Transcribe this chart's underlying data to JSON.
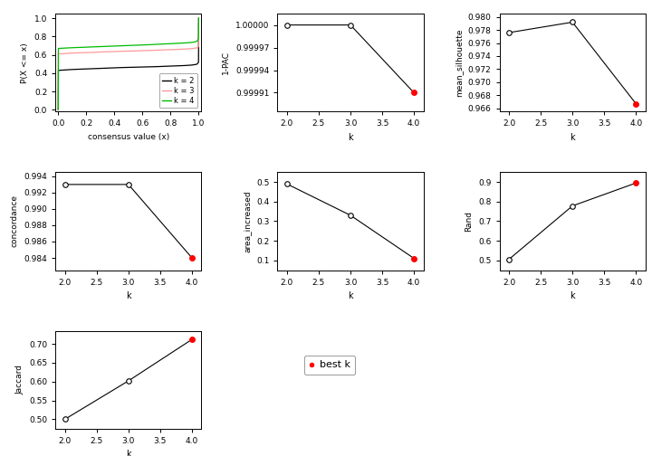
{
  "ecdf": {
    "k2": {
      "x": [
        0.0,
        0.001,
        0.05,
        0.1,
        0.15,
        0.2,
        0.25,
        0.3,
        0.35,
        0.4,
        0.45,
        0.5,
        0.55,
        0.6,
        0.65,
        0.7,
        0.75,
        0.8,
        0.85,
        0.9,
        0.95,
        0.98,
        0.99,
        0.999,
        1.0
      ],
      "y": [
        0.0,
        0.43,
        0.435,
        0.44,
        0.443,
        0.446,
        0.449,
        0.452,
        0.455,
        0.458,
        0.461,
        0.463,
        0.465,
        0.467,
        0.469,
        0.471,
        0.474,
        0.477,
        0.48,
        0.483,
        0.488,
        0.495,
        0.5,
        0.52,
        1.0
      ],
      "color": "#000000"
    },
    "k3": {
      "x": [
        0.0,
        0.001,
        0.05,
        0.1,
        0.15,
        0.2,
        0.25,
        0.3,
        0.35,
        0.4,
        0.45,
        0.5,
        0.55,
        0.6,
        0.65,
        0.7,
        0.75,
        0.8,
        0.85,
        0.9,
        0.95,
        0.98,
        0.99,
        0.999,
        1.0
      ],
      "y": [
        0.0,
        0.61,
        0.615,
        0.62,
        0.622,
        0.625,
        0.628,
        0.631,
        0.634,
        0.636,
        0.639,
        0.641,
        0.643,
        0.646,
        0.648,
        0.651,
        0.654,
        0.657,
        0.66,
        0.663,
        0.668,
        0.674,
        0.678,
        0.69,
        1.0
      ],
      "color": "#FF9999"
    },
    "k4": {
      "x": [
        0.0,
        0.001,
        0.05,
        0.1,
        0.15,
        0.2,
        0.25,
        0.3,
        0.35,
        0.4,
        0.45,
        0.5,
        0.55,
        0.6,
        0.65,
        0.7,
        0.75,
        0.8,
        0.85,
        0.9,
        0.95,
        0.975,
        0.985,
        0.99,
        0.999,
        1.0
      ],
      "y": [
        0.0,
        0.67,
        0.674,
        0.678,
        0.681,
        0.684,
        0.687,
        0.69,
        0.693,
        0.696,
        0.699,
        0.702,
        0.705,
        0.708,
        0.711,
        0.715,
        0.719,
        0.722,
        0.726,
        0.73,
        0.736,
        0.742,
        0.748,
        0.752,
        0.78,
        1.0
      ],
      "color": "#00BB00"
    }
  },
  "pac": {
    "k": [
      2,
      3,
      4
    ],
    "values": [
      1.0,
      1.0,
      0.99991
    ],
    "best_k": 4,
    "ylim_lo": 0.999885,
    "ylim_hi": 1.000015,
    "yticks": [
      0.99991,
      0.99994,
      0.99997,
      1.0
    ],
    "yticklabels": [
      "0.99991",
      "0.99994",
      "0.99997",
      "1.00000"
    ]
  },
  "mean_silhouette": {
    "k": [
      2,
      3,
      4
    ],
    "values": [
      0.9776,
      0.9792,
      0.9667
    ],
    "best_k": 4,
    "ylim_lo": 0.9655,
    "ylim_hi": 0.9805,
    "yticks": [
      0.966,
      0.968,
      0.97,
      0.972,
      0.974,
      0.976,
      0.978,
      0.98
    ],
    "yticklabels": [
      "0.966",
      "0.968",
      "0.970",
      "0.972",
      "0.974",
      "0.976",
      "0.978",
      "0.980"
    ]
  },
  "concordance": {
    "k": [
      2,
      3,
      4
    ],
    "values": [
      0.993,
      0.993,
      0.984
    ],
    "best_k": 4,
    "ylim_lo": 0.9825,
    "ylim_hi": 0.9945,
    "yticks": [
      0.984,
      0.986,
      0.988,
      0.99,
      0.992,
      0.994
    ],
    "yticklabels": [
      "0.984",
      "0.986",
      "0.988",
      "0.990",
      "0.992",
      "0.994"
    ]
  },
  "area_increased": {
    "k": [
      2,
      3,
      4
    ],
    "values": [
      0.49,
      0.33,
      0.11
    ],
    "best_k": 4,
    "ylim_lo": 0.05,
    "ylim_hi": 0.55,
    "yticks": [
      0.1,
      0.2,
      0.3,
      0.4,
      0.5
    ],
    "yticklabels": [
      "0.1",
      "0.2",
      "0.3",
      "0.4",
      "0.5"
    ]
  },
  "rand": {
    "k": [
      2,
      3,
      4
    ],
    "values": [
      0.505,
      0.778,
      0.895
    ],
    "best_k": 4,
    "ylim_lo": 0.45,
    "ylim_hi": 0.95,
    "yticks": [
      0.5,
      0.6,
      0.7,
      0.8,
      0.9
    ],
    "yticklabels": [
      "0.5",
      "0.6",
      "0.7",
      "0.8",
      "0.9"
    ]
  },
  "jaccard": {
    "k": [
      2,
      3,
      4
    ],
    "values": [
      0.5,
      0.602,
      0.712
    ],
    "best_k": 4,
    "ylim_lo": 0.475,
    "ylim_hi": 0.735,
    "yticks": [
      0.5,
      0.55,
      0.6,
      0.65,
      0.7
    ],
    "yticklabels": [
      "0.50",
      "0.55",
      "0.60",
      "0.65",
      "0.70"
    ]
  },
  "colors": {
    "line": "#000000",
    "open_dot_face": "#FFFFFF",
    "open_dot_edge": "#000000",
    "best_dot": "#FF0000",
    "background": "#FFFFFF"
  },
  "legend_k2_color": "#000000",
  "legend_k3_color": "#FF9999",
  "legend_k4_color": "#00BB00"
}
